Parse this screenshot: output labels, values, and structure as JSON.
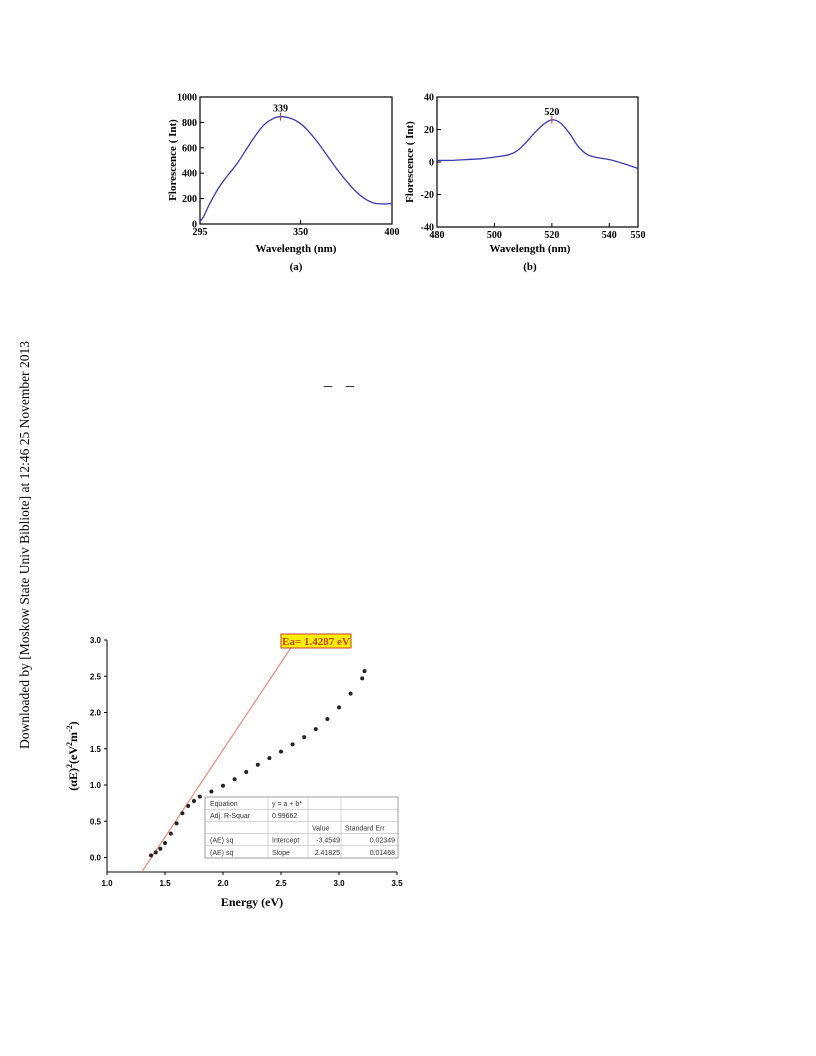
{
  "side_note": "Downloaded by [Moskow State Univ Bibliote] at 12:46 25 November 2013",
  "chart_data": [
    {
      "type": "line",
      "panel_label": "(a)",
      "xlabel": "Wavelength (nm)",
      "ylabel": "Florescence ( Int)",
      "xlim": [
        295,
        400
      ],
      "ylim": [
        0,
        1000
      ],
      "xticks": [
        295,
        350,
        400
      ],
      "yticks": [
        0,
        200,
        400,
        600,
        800,
        1000
      ],
      "peak_label": "339",
      "peak": {
        "x": 339,
        "y": 845
      },
      "line_color": "#3a3ab0",
      "series": [
        {
          "x": [
            295,
            297,
            300,
            305,
            310,
            315,
            320,
            325,
            330,
            335,
            339,
            345,
            350,
            355,
            360,
            365,
            370,
            375,
            380,
            385,
            390,
            395,
            400
          ],
          "y": [
            20,
            60,
            150,
            280,
            380,
            470,
            580,
            690,
            780,
            830,
            845,
            830,
            790,
            720,
            630,
            530,
            430,
            340,
            260,
            200,
            165,
            158,
            160
          ]
        }
      ]
    },
    {
      "type": "line",
      "panel_label": "(b)",
      "xlabel": "Wavelength (nm)",
      "ylabel": "Florescence ( Int)",
      "xlim": [
        480,
        550
      ],
      "ylim": [
        -40,
        40
      ],
      "xticks": [
        480,
        500,
        520,
        540,
        550
      ],
      "yticks": [
        -40,
        -20,
        0,
        20,
        40
      ],
      "peak_label": "520",
      "peak": {
        "x": 520,
        "y": 26
      },
      "line_color": "#3a3ab0",
      "series": [
        {
          "x": [
            480,
            485,
            490,
            495,
            500,
            505,
            508,
            511,
            514,
            517,
            520,
            523,
            526,
            529,
            532,
            535,
            540,
            545,
            550
          ],
          "y": [
            1,
            1,
            1.5,
            2,
            3,
            4.5,
            7,
            12,
            18,
            23,
            26,
            24,
            18,
            10,
            5,
            3,
            1.5,
            -1,
            -4
          ]
        }
      ]
    },
    {
      "type": "scatter",
      "xlabel": "Energy (eV)",
      "ylabel_parts": {
        "a": "(αE)",
        "b": "2",
        "c": "(eV",
        "d": "2",
        "e": "m",
        "f": "-2",
        "g": ")"
      },
      "xlim": [
        1.0,
        3.5
      ],
      "ylim": [
        -0.2,
        3.0
      ],
      "xticks": [
        "1.0",
        "1.5",
        "2.0",
        "2.5",
        "3.0",
        "3.5"
      ],
      "yticks": [
        "0.0",
        "0.5",
        "1.0",
        "1.5",
        "2.0",
        "2.5",
        "3.0"
      ],
      "series": [
        {
          "x": [
            1.38,
            1.42,
            1.46,
            1.5,
            1.55,
            1.6,
            1.65,
            1.7,
            1.75,
            1.8,
            1.9,
            2.0,
            2.1,
            2.2,
            2.3,
            2.4,
            2.5,
            2.6,
            2.7,
            2.8,
            2.9,
            3.0,
            3.1,
            3.2,
            3.22
          ],
          "y": [
            0.03,
            0.07,
            0.12,
            0.2,
            0.33,
            0.47,
            0.61,
            0.71,
            0.78,
            0.84,
            0.91,
            0.99,
            1.08,
            1.18,
            1.28,
            1.37,
            1.46,
            1.56,
            1.66,
            1.77,
            1.91,
            2.07,
            2.26,
            2.47,
            2.57
          ]
        }
      ],
      "fit_line": {
        "x": [
          1.3,
          2.63
        ],
        "y": [
          -0.2,
          3.0
        ],
        "color": "#e88a7a"
      },
      "annotation": {
        "text": "Ea= 1.4287 eV",
        "bg": "#ffee00",
        "border": "#c2442a",
        "color": "#c2442a"
      },
      "fit_table": {
        "rows": [
          [
            "Equation",
            "y = a + b*",
            "",
            ""
          ],
          [
            "Adj. R-Squar",
            "0.99662",
            "",
            ""
          ],
          [
            "",
            "",
            "Value",
            "Standard Err"
          ],
          [
            "(AE) sq",
            "Intercept",
            "-3.4549",
            "0.02349"
          ],
          [
            "(AE) sq",
            "Slope",
            "2.41825",
            "0.01468"
          ]
        ]
      }
    }
  ]
}
